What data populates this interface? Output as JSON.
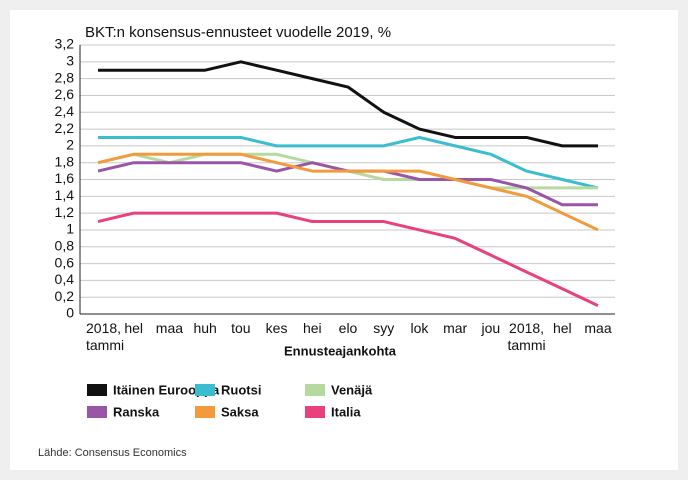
{
  "chart_data": {
    "type": "line",
    "title": "BKT:n konsensus-ennusteet vuodelle 2019, %",
    "x_label": "Ennusteajankohta",
    "categories": [
      "2018,\ntammi",
      "hel",
      "maa",
      "huh",
      "tou",
      "kes",
      "hei",
      "elo",
      "syy",
      "lok",
      "mar",
      "jou",
      "2018,\ntammi",
      "hel",
      "maa"
    ],
    "ylim": [
      0,
      3.2
    ],
    "yticks": [
      0,
      {
        "value": 0.2,
        "label": "0,2"
      },
      {
        "value": 0.4,
        "label": "0,4"
      },
      {
        "value": 0.6,
        "label": "0,6"
      },
      {
        "value": 0.8,
        "label": "0,8"
      },
      1,
      {
        "value": 1.2,
        "label": "1,2"
      },
      {
        "value": 1.4,
        "label": "1,4"
      },
      {
        "value": 1.6,
        "label": "1,6"
      },
      {
        "value": 1.8,
        "label": "1,8"
      },
      2,
      {
        "value": 2.2,
        "label": "2,2"
      },
      {
        "value": 2.4,
        "label": "2,4"
      },
      {
        "value": 2.6,
        "label": "2,6"
      },
      {
        "value": 2.8,
        "label": "2,8"
      },
      3,
      {
        "value": 3.2,
        "label": "3,2"
      }
    ],
    "grid": true,
    "series": [
      {
        "name": "Itäinen Eurooppa",
        "color": "#111111",
        "values": [
          2.9,
          2.9,
          2.9,
          2.9,
          3.0,
          2.9,
          2.8,
          2.7,
          2.4,
          2.2,
          2.1,
          2.1,
          2.1,
          2.0,
          2.0
        ]
      },
      {
        "name": "Ruotsi",
        "color": "#3bbdd0",
        "values": [
          2.1,
          2.1,
          2.1,
          2.1,
          2.1,
          2.0,
          2.0,
          2.0,
          2.0,
          2.1,
          2.0,
          1.9,
          1.7,
          1.6,
          1.5
        ]
      },
      {
        "name": "Venäjä",
        "color": "#b6da9e",
        "values": [
          1.8,
          1.9,
          1.8,
          1.9,
          1.9,
          1.9,
          1.8,
          1.7,
          1.6,
          1.6,
          1.6,
          1.5,
          1.5,
          1.5,
          1.5
        ]
      },
      {
        "name": "Ranska",
        "color": "#9a56a6",
        "values": [
          1.7,
          1.8,
          1.8,
          1.8,
          1.8,
          1.7,
          1.8,
          1.7,
          1.7,
          1.6,
          1.6,
          1.6,
          1.5,
          1.3,
          1.3
        ]
      },
      {
        "name": "Saksa",
        "color": "#f39a3c",
        "values": [
          1.8,
          1.9,
          1.9,
          1.9,
          1.9,
          1.8,
          1.7,
          1.7,
          1.7,
          1.7,
          1.6,
          1.5,
          1.4,
          1.2,
          1.0
        ]
      },
      {
        "name": "Italia",
        "color": "#e8417e",
        "values": [
          1.1,
          1.2,
          1.2,
          1.2,
          1.2,
          1.2,
          1.1,
          1.1,
          1.1,
          1.0,
          0.9,
          0.7,
          0.5,
          0.3,
          0.1
        ]
      }
    ]
  },
  "source": "Lähde: Consensus Economics"
}
